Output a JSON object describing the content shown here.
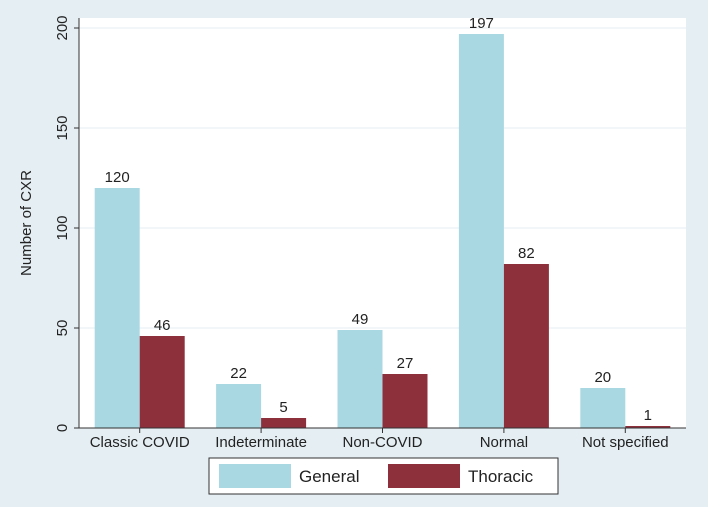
{
  "chart_data": {
    "type": "bar",
    "categories": [
      "Classic COVID",
      "Indeterminate",
      "Non-COVID",
      "Normal",
      "Not specified"
    ],
    "series": [
      {
        "name": "General",
        "values": [
          120,
          22,
          49,
          197,
          20
        ],
        "color": "#aad8e2"
      },
      {
        "name": "Thoracic",
        "values": [
          46,
          5,
          27,
          82,
          1
        ],
        "color": "#8e2f3c"
      }
    ],
    "title": "",
    "xlabel": "",
    "ylabel": "Number of CXR",
    "ylim": [
      0,
      205
    ],
    "yticks": [
      0,
      50,
      100,
      150,
      200
    ],
    "grid": true,
    "legend_position": "bottom-center"
  },
  "colors": {
    "background": "#e4eef3",
    "plot_area": "#ffffff",
    "grid": "#e6eef1",
    "axis": "#333333"
  }
}
